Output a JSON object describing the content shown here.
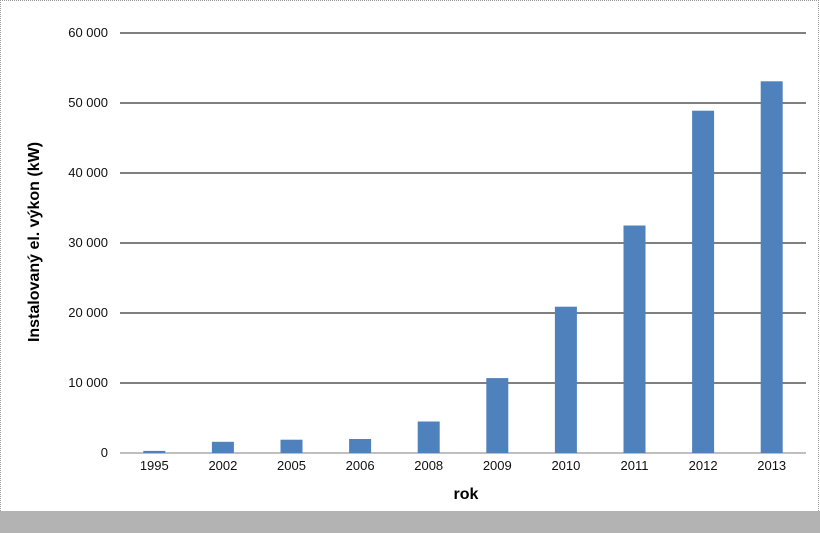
{
  "chart_data": {
    "type": "bar",
    "categories": [
      "1995",
      "2002",
      "2005",
      "2006",
      "2008",
      "2009",
      "2010",
      "2011",
      "2012",
      "2013"
    ],
    "values": [
      300,
      1600,
      1900,
      2000,
      4500,
      10700,
      20900,
      32500,
      48900,
      53100
    ],
    "xlabel": "rok",
    "ylabel": "Instalovaný el. výkon (kW)",
    "ylim": [
      0,
      60000
    ],
    "yticks": [
      0,
      10000,
      20000,
      30000,
      40000,
      50000,
      60000
    ],
    "ytick_labels": [
      "0",
      "10 000",
      "20 000",
      "30 000",
      "40 000",
      "50 000",
      "60 000"
    ],
    "grid": "horizontal",
    "bar_color": "#4f81bd",
    "grid_color": "#000000"
  }
}
